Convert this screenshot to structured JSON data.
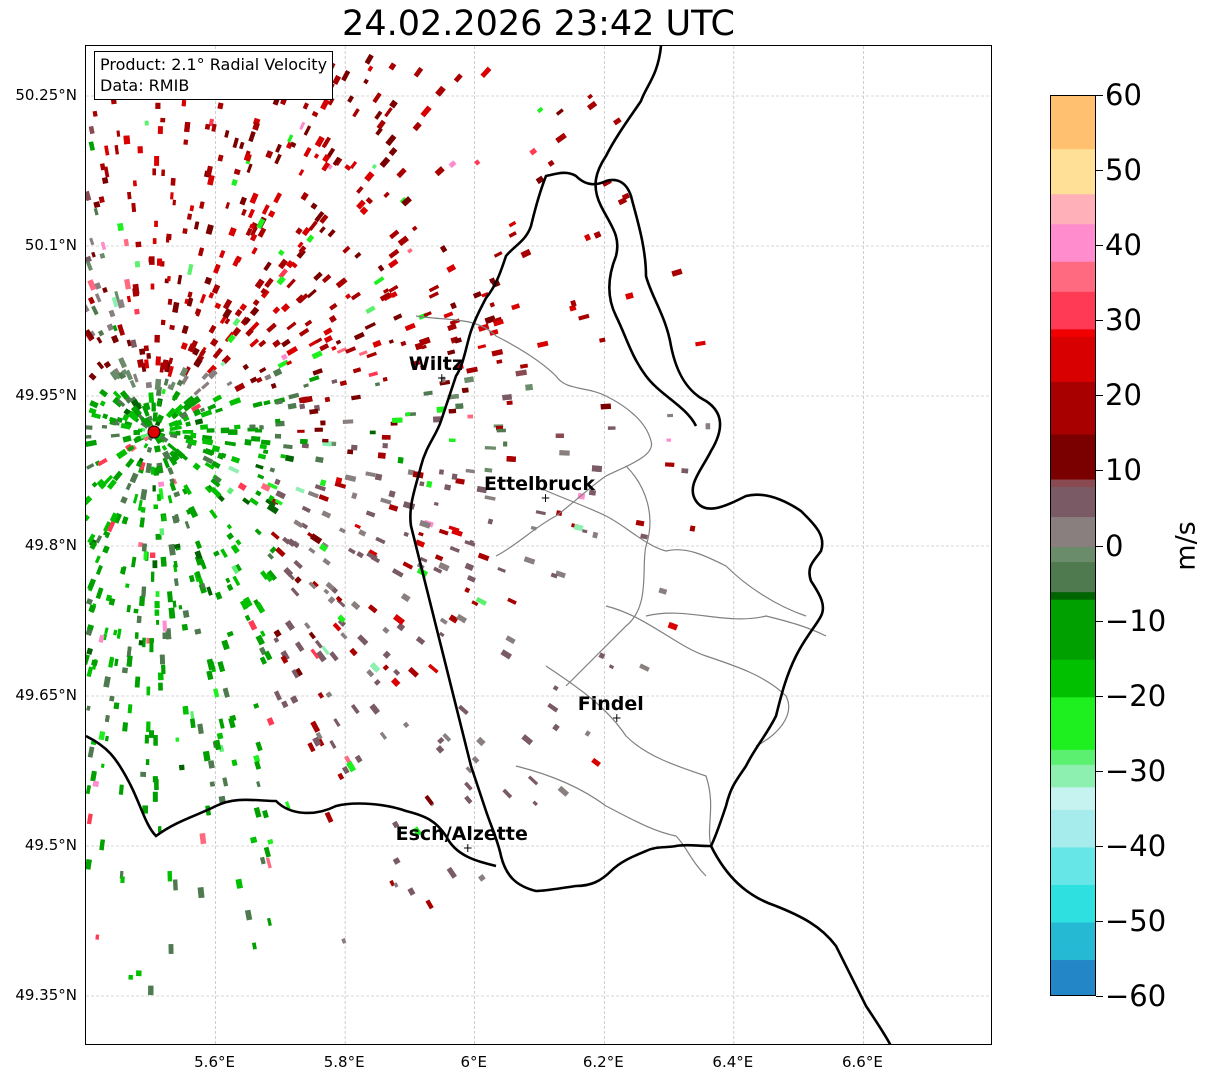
{
  "title": "24.02.2026 23:42 UTC",
  "info": {
    "product": "Product: 2.1° Radial Velocity",
    "source": "Data: RMIB"
  },
  "axes": {
    "lat_ticks": [
      {
        "value": 50.25,
        "label": "50.25°N"
      },
      {
        "value": 50.1,
        "label": "50.1°N"
      },
      {
        "value": 49.95,
        "label": "49.95°N"
      },
      {
        "value": 49.8,
        "label": "49.8°N"
      },
      {
        "value": 49.65,
        "label": "49.65°N"
      },
      {
        "value": 49.5,
        "label": "49.5°N"
      },
      {
        "value": 49.35,
        "label": "49.35°N"
      }
    ],
    "lon_ticks": [
      {
        "value": 5.6,
        "label": "5.6°E"
      },
      {
        "value": 5.8,
        "label": "5.8°E"
      },
      {
        "value": 6.0,
        "label": "6°E"
      },
      {
        "value": 6.2,
        "label": "6.2°E"
      },
      {
        "value": 6.4,
        "label": "6.4°E"
      },
      {
        "value": 6.6,
        "label": "6.6°E"
      }
    ],
    "lon_range": [
      5.4,
      6.8
    ],
    "lat_range": [
      49.3,
      50.3
    ]
  },
  "cities": [
    {
      "name": "Wiltz",
      "lon": 5.94,
      "lat": 49.97
    },
    {
      "name": "Ettelbruck",
      "lon": 6.1,
      "lat": 49.85
    },
    {
      "name": "Findel",
      "lon": 6.21,
      "lat": 49.63
    },
    {
      "name": "Esch/Alzette",
      "lon": 5.98,
      "lat": 49.5
    }
  ],
  "radar_site": {
    "lon": 5.505,
    "lat": 49.914
  },
  "colorbar": {
    "unit": "m/s",
    "min": -60,
    "max": 60,
    "ticks": [
      {
        "value": 60,
        "label": "60"
      },
      {
        "value": 50,
        "label": "50"
      },
      {
        "value": 40,
        "label": "40"
      },
      {
        "value": 30,
        "label": "30"
      },
      {
        "value": 20,
        "label": "20"
      },
      {
        "value": 10,
        "label": "10"
      },
      {
        "value": 0,
        "label": "0"
      },
      {
        "value": -10,
        "label": "−10"
      },
      {
        "value": -20,
        "label": "−20"
      },
      {
        "value": -30,
        "label": "−30"
      },
      {
        "value": -40,
        "label": "−40"
      },
      {
        "value": -50,
        "label": "−50"
      },
      {
        "value": -60,
        "label": "−60"
      }
    ],
    "stops": [
      {
        "v": -60,
        "c": "#2387c7"
      },
      {
        "v": -55,
        "c": "#26b9d4"
      },
      {
        "v": -50,
        "c": "#2ee0e0"
      },
      {
        "v": -45,
        "c": "#66e6e6"
      },
      {
        "v": -40,
        "c": "#a6ecec"
      },
      {
        "v": -35,
        "c": "#c6f2f0"
      },
      {
        "v": -32,
        "c": "#8ef0b0"
      },
      {
        "v": -29,
        "c": "#5cf070"
      },
      {
        "v": -27,
        "c": "#1ef020"
      },
      {
        "v": -20,
        "c": "#00c000"
      },
      {
        "v": -15,
        "c": "#00a000"
      },
      {
        "v": -7,
        "c": "#006400"
      },
      {
        "v": -6,
        "c": "#4f7a4f"
      },
      {
        "v": -2,
        "c": "#6b8c6b"
      },
      {
        "v": 0,
        "c": "#8a7f7f"
      },
      {
        "v": 4,
        "c": "#7a5a64"
      },
      {
        "v": 8,
        "c": "#8a4a52"
      },
      {
        "v": 9,
        "c": "#7a0000"
      },
      {
        "v": 15,
        "c": "#a80000"
      },
      {
        "v": 22,
        "c": "#d80000"
      },
      {
        "v": 28,
        "c": "#f00000"
      },
      {
        "v": 29,
        "c": "#ff3a55"
      },
      {
        "v": 34,
        "c": "#ff6a80"
      },
      {
        "v": 38,
        "c": "#ff8ccc"
      },
      {
        "v": 43,
        "c": "#ffb0b8"
      },
      {
        "v": 47,
        "c": "#ffe096"
      },
      {
        "v": 53,
        "c": "#ffc070"
      },
      {
        "v": 60,
        "c": "#ff9a50"
      }
    ]
  },
  "colors": {
    "border": "#000000",
    "district": "#808080",
    "grid": "#b0b0b0",
    "radar_dot": "#e00000"
  }
}
